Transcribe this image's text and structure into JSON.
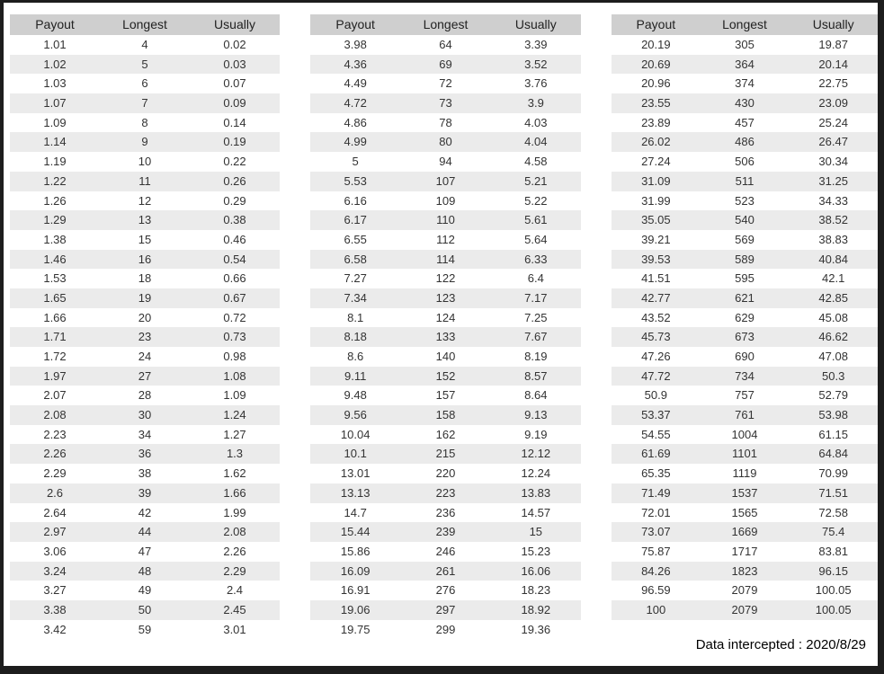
{
  "footer": {
    "text": "Data intercepted : 2020/8/29"
  },
  "colors": {
    "frame_border": "#1d1d1d",
    "header_bg": "#cfcfcf",
    "stripe_bg": "#ebebeb",
    "cell_text": "#333333"
  },
  "chart_data": [
    {
      "type": "table",
      "title": "",
      "columns": [
        "Payout",
        "Longest",
        "Usually"
      ],
      "rows": [
        [
          "1.01",
          "4",
          "0.02"
        ],
        [
          "1.02",
          "5",
          "0.03"
        ],
        [
          "1.03",
          "6",
          "0.07"
        ],
        [
          "1.07",
          "7",
          "0.09"
        ],
        [
          "1.09",
          "8",
          "0.14"
        ],
        [
          "1.14",
          "9",
          "0.19"
        ],
        [
          "1.19",
          "10",
          "0.22"
        ],
        [
          "1.22",
          "11",
          "0.26"
        ],
        [
          "1.26",
          "12",
          "0.29"
        ],
        [
          "1.29",
          "13",
          "0.38"
        ],
        [
          "1.38",
          "15",
          "0.46"
        ],
        [
          "1.46",
          "16",
          "0.54"
        ],
        [
          "1.53",
          "18",
          "0.66"
        ],
        [
          "1.65",
          "19",
          "0.67"
        ],
        [
          "1.66",
          "20",
          "0.72"
        ],
        [
          "1.71",
          "23",
          "0.73"
        ],
        [
          "1.72",
          "24",
          "0.98"
        ],
        [
          "1.97",
          "27",
          "1.08"
        ],
        [
          "2.07",
          "28",
          "1.09"
        ],
        [
          "2.08",
          "30",
          "1.24"
        ],
        [
          "2.23",
          "34",
          "1.27"
        ],
        [
          "2.26",
          "36",
          "1.3"
        ],
        [
          "2.29",
          "38",
          "1.62"
        ],
        [
          "2.6",
          "39",
          "1.66"
        ],
        [
          "2.64",
          "42",
          "1.99"
        ],
        [
          "2.97",
          "44",
          "2.08"
        ],
        [
          "3.06",
          "47",
          "2.26"
        ],
        [
          "3.24",
          "48",
          "2.29"
        ],
        [
          "3.27",
          "49",
          "2.4"
        ],
        [
          "3.38",
          "50",
          "2.45"
        ],
        [
          "3.42",
          "59",
          "3.01"
        ]
      ]
    },
    {
      "type": "table",
      "title": "",
      "columns": [
        "Payout",
        "Longest",
        "Usually"
      ],
      "rows": [
        [
          "3.98",
          "64",
          "3.39"
        ],
        [
          "4.36",
          "69",
          "3.52"
        ],
        [
          "4.49",
          "72",
          "3.76"
        ],
        [
          "4.72",
          "73",
          "3.9"
        ],
        [
          "4.86",
          "78",
          "4.03"
        ],
        [
          "4.99",
          "80",
          "4.04"
        ],
        [
          "5",
          "94",
          "4.58"
        ],
        [
          "5.53",
          "107",
          "5.21"
        ],
        [
          "6.16",
          "109",
          "5.22"
        ],
        [
          "6.17",
          "110",
          "5.61"
        ],
        [
          "6.55",
          "112",
          "5.64"
        ],
        [
          "6.58",
          "114",
          "6.33"
        ],
        [
          "7.27",
          "122",
          "6.4"
        ],
        [
          "7.34",
          "123",
          "7.17"
        ],
        [
          "8.1",
          "124",
          "7.25"
        ],
        [
          "8.18",
          "133",
          "7.67"
        ],
        [
          "8.6",
          "140",
          "8.19"
        ],
        [
          "9.11",
          "152",
          "8.57"
        ],
        [
          "9.48",
          "157",
          "8.64"
        ],
        [
          "9.56",
          "158",
          "9.13"
        ],
        [
          "10.04",
          "162",
          "9.19"
        ],
        [
          "10.1",
          "215",
          "12.12"
        ],
        [
          "13.01",
          "220",
          "12.24"
        ],
        [
          "13.13",
          "223",
          "13.83"
        ],
        [
          "14.7",
          "236",
          "14.57"
        ],
        [
          "15.44",
          "239",
          "15"
        ],
        [
          "15.86",
          "246",
          "15.23"
        ],
        [
          "16.09",
          "261",
          "16.06"
        ],
        [
          "16.91",
          "276",
          "18.23"
        ],
        [
          "19.06",
          "297",
          "18.92"
        ],
        [
          "19.75",
          "299",
          "19.36"
        ]
      ]
    },
    {
      "type": "table",
      "title": "",
      "columns": [
        "Payout",
        "Longest",
        "Usually"
      ],
      "rows": [
        [
          "20.19",
          "305",
          "19.87"
        ],
        [
          "20.69",
          "364",
          "20.14"
        ],
        [
          "20.96",
          "374",
          "22.75"
        ],
        [
          "23.55",
          "430",
          "23.09"
        ],
        [
          "23.89",
          "457",
          "25.24"
        ],
        [
          "26.02",
          "486",
          "26.47"
        ],
        [
          "27.24",
          "506",
          "30.34"
        ],
        [
          "31.09",
          "511",
          "31.25"
        ],
        [
          "31.99",
          "523",
          "34.33"
        ],
        [
          "35.05",
          "540",
          "38.52"
        ],
        [
          "39.21",
          "569",
          "38.83"
        ],
        [
          "39.53",
          "589",
          "40.84"
        ],
        [
          "41.51",
          "595",
          "42.1"
        ],
        [
          "42.77",
          "621",
          "42.85"
        ],
        [
          "43.52",
          "629",
          "45.08"
        ],
        [
          "45.73",
          "673",
          "46.62"
        ],
        [
          "47.26",
          "690",
          "47.08"
        ],
        [
          "47.72",
          "734",
          "50.3"
        ],
        [
          "50.9",
          "757",
          "52.79"
        ],
        [
          "53.37",
          "761",
          "53.98"
        ],
        [
          "54.55",
          "1004",
          "61.15"
        ],
        [
          "61.69",
          "1101",
          "64.84"
        ],
        [
          "65.35",
          "1119",
          "70.99"
        ],
        [
          "71.49",
          "1537",
          "71.51"
        ],
        [
          "72.01",
          "1565",
          "72.58"
        ],
        [
          "73.07",
          "1669",
          "75.4"
        ],
        [
          "75.87",
          "1717",
          "83.81"
        ],
        [
          "84.26",
          "1823",
          "96.15"
        ],
        [
          "96.59",
          "2079",
          "100.05"
        ],
        [
          "100",
          "2079",
          "100.05"
        ]
      ]
    }
  ]
}
